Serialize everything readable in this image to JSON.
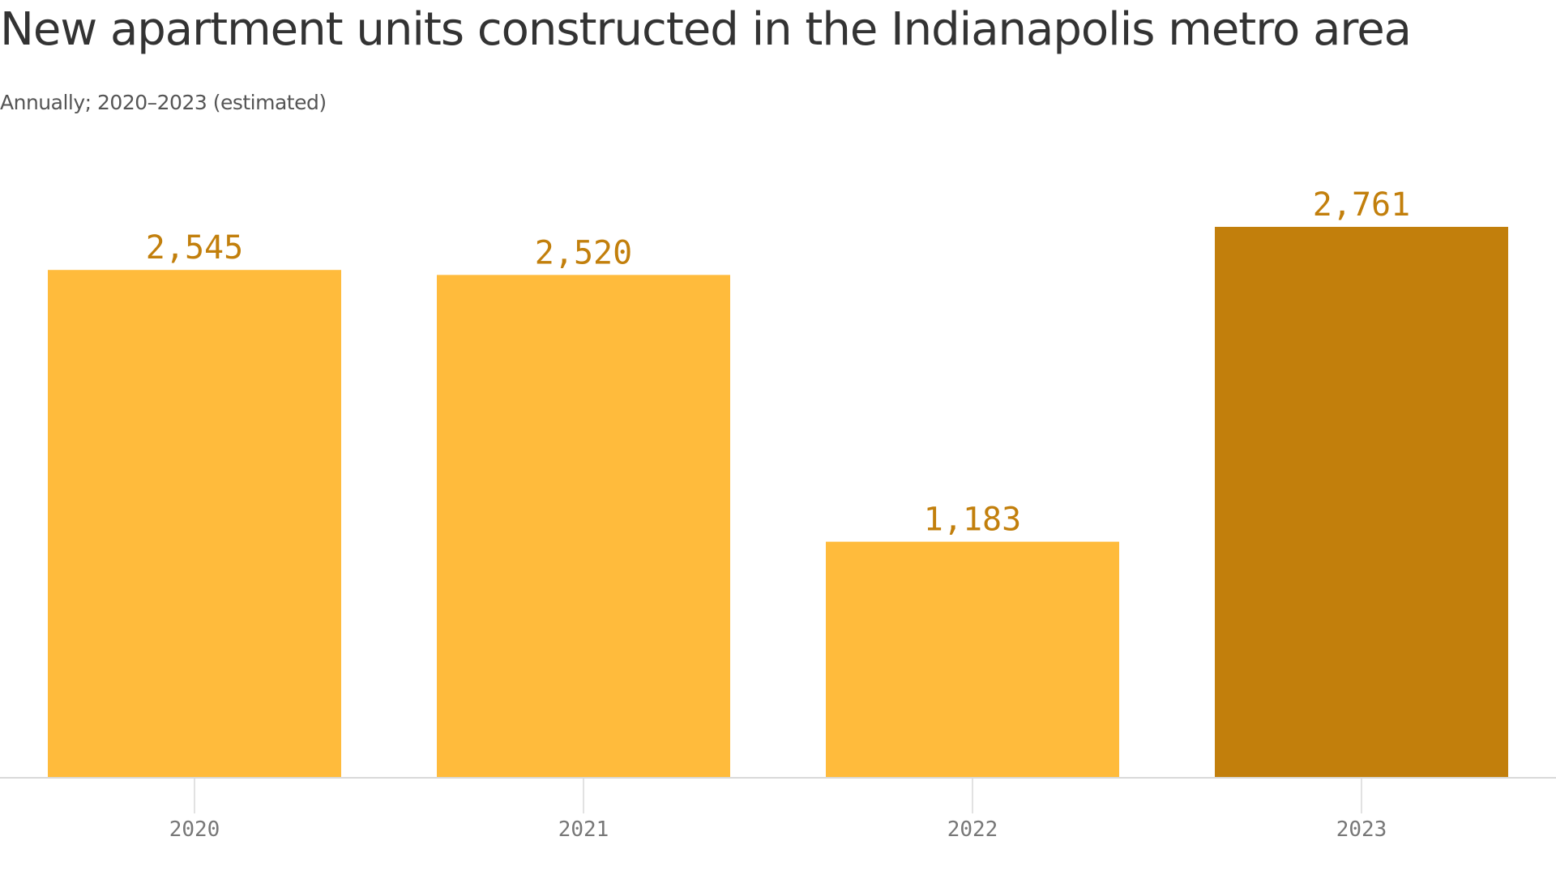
{
  "title": "New apartment units constructed in the Indianapolis metro area",
  "subtitle": "Annually; 2020–2023 (estimated)",
  "colors": {
    "bar": "#ffbb3c",
    "highlight": "#c27f0c",
    "value_label": "#c27f0c",
    "axis": "#d9d9d9",
    "tick_label": "#777777"
  },
  "chart_data": {
    "type": "bar",
    "categories": [
      "2020",
      "2021",
      "2022",
      "2023"
    ],
    "values": [
      2545,
      2520,
      1183,
      2761
    ],
    "value_labels": [
      "2,545",
      "2,520",
      "1,183",
      "2,761"
    ],
    "highlight": [
      "2023"
    ],
    "title": "New apartment units constructed in the Indianapolis metro area",
    "subtitle": "Annually; 2020–2023 (estimated)",
    "xlabel": "",
    "ylabel": "",
    "ylim": [
      0,
      2761
    ],
    "grid": false
  }
}
